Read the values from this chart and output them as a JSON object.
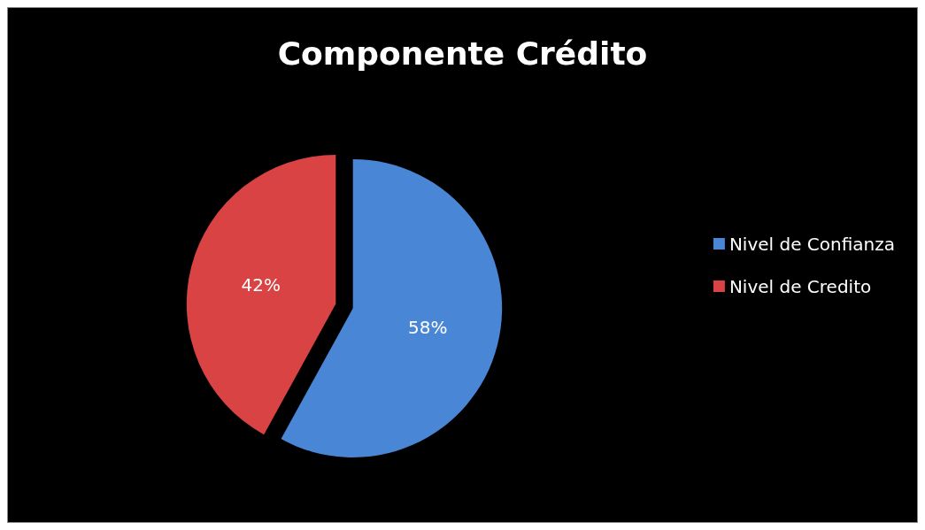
{
  "chart_data": {
    "type": "pie",
    "title": "Componente Crédito",
    "categories": [
      "Nivel de Confianza",
      "Nivel de Credito"
    ],
    "values": [
      58,
      42
    ],
    "colors": [
      "#4a86d6",
      "#d94343"
    ],
    "value_labels": [
      "58%",
      "42%"
    ],
    "legend": "right"
  }
}
